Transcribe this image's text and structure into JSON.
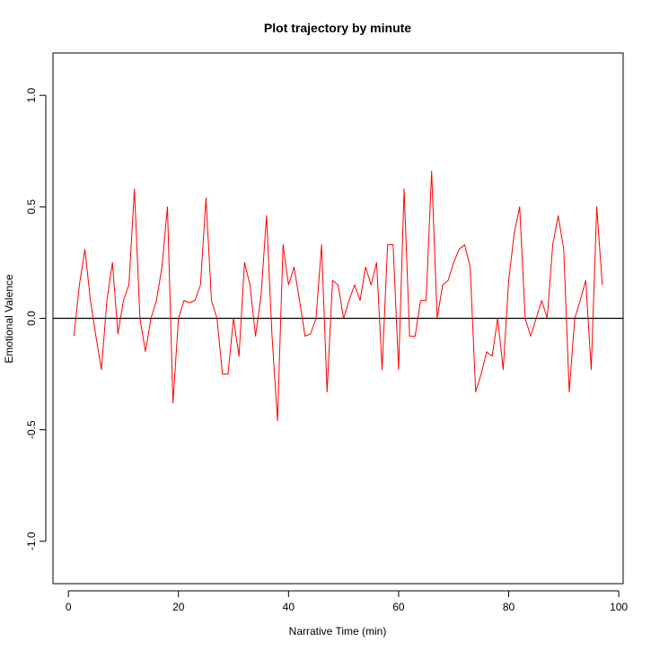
{
  "chart_data": {
    "type": "line",
    "title": "Plot trajectory by minute",
    "xlabel": "Narrative Time (min)",
    "ylabel": "Emotional Valence",
    "xlim": [
      -2.8,
      100.8
    ],
    "ylim": [
      -1.19,
      1.19
    ],
    "xticks": [
      0,
      20,
      40,
      60,
      80,
      100
    ],
    "yticks": [
      -1.0,
      -0.5,
      0.0,
      0.5,
      1.0
    ],
    "xtick_labels": [
      "0",
      "20",
      "40",
      "60",
      "80",
      "100"
    ],
    "ytick_labels": [
      "-1.0",
      "-0.5",
      "0.0",
      "0.5",
      "1.0"
    ],
    "grid": false,
    "legend": "none",
    "reference_line": {
      "y": 0,
      "color": "#000000"
    },
    "series": [
      {
        "color": "#ff0000",
        "x": [
          1,
          2,
          3,
          4,
          5,
          6,
          7,
          8,
          9,
          10,
          11,
          12,
          13,
          14,
          15,
          16,
          17,
          18,
          19,
          20,
          21,
          22,
          23,
          24,
          25,
          26,
          27,
          28,
          29,
          30,
          31,
          32,
          33,
          34,
          35,
          36,
          37,
          38,
          39,
          40,
          41,
          42,
          43,
          44,
          45,
          46,
          47,
          48,
          49,
          50,
          51,
          52,
          53,
          54,
          55,
          56,
          57,
          58,
          59,
          60,
          61,
          62,
          63,
          64,
          65,
          66,
          67,
          68,
          69,
          70,
          71,
          72,
          73,
          74,
          75,
          76,
          77,
          78,
          79,
          80,
          81,
          82,
          83,
          84,
          85,
          86,
          87,
          88,
          89,
          90,
          91,
          92,
          93,
          94,
          95,
          96,
          97
        ],
        "y": [
          -0.08,
          0.15,
          0.31,
          0.08,
          -0.08,
          -0.23,
          0.08,
          0.25,
          -0.07,
          0.08,
          0.15,
          0.58,
          0.0,
          -0.15,
          0.0,
          0.08,
          0.23,
          0.5,
          -0.38,
          0.0,
          0.08,
          0.07,
          0.08,
          0.15,
          0.54,
          0.08,
          0.0,
          -0.25,
          -0.25,
          0.0,
          -0.17,
          0.25,
          0.15,
          -0.08,
          0.1,
          0.46,
          -0.08,
          -0.46,
          0.33,
          0.15,
          0.23,
          0.08,
          -0.08,
          -0.07,
          0.0,
          0.33,
          -0.33,
          0.17,
          0.15,
          0.0,
          0.08,
          0.15,
          0.08,
          0.23,
          0.15,
          0.25,
          -0.23,
          0.33,
          0.33,
          -0.23,
          0.58,
          -0.08,
          -0.08,
          0.08,
          0.08,
          0.66,
          0.0,
          0.15,
          0.17,
          0.25,
          0.31,
          0.33,
          0.23,
          -0.33,
          -0.25,
          -0.15,
          -0.17,
          0.0,
          -0.23,
          0.17,
          0.38,
          0.5,
          0.0,
          -0.08,
          0.0,
          0.08,
          0.0,
          0.33,
          0.46,
          0.31,
          -0.33,
          0.0,
          0.08,
          0.17,
          -0.23,
          0.5,
          0.15
        ]
      }
    ]
  }
}
